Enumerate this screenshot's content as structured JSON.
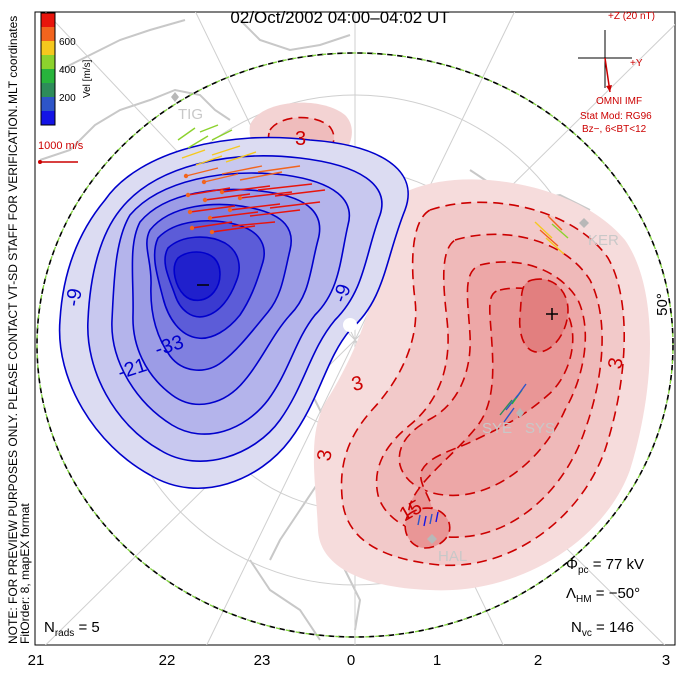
{
  "title": "02/Oct/2002 04:00–04:02 UT",
  "colorbar": {
    "ticks": [
      "600",
      "400",
      "200"
    ],
    "unit_label": "Vel [m/s]",
    "colors_top_to_bottom": [
      "#e8140c",
      "#f2641e",
      "#f5c81e",
      "#8cd22d",
      "#28b43c",
      "#2d8c5a",
      "#2d55c8",
      "#1414e6"
    ]
  },
  "coords_label": "MLT coordinates",
  "scale_vector_label": "1000 m/s",
  "imf": {
    "plus_z_label": "+Z (20 nT)",
    "plus_y_label": "+Y",
    "source_label": "OMNI IMF",
    "stat_mod": "Stat Mod: RG96",
    "condition": "Bz−, 6<BT<12"
  },
  "contour_labels": {
    "neg": [
      "-9",
      "-33",
      "-21",
      "-9"
    ],
    "pos": [
      "3",
      "3",
      "3",
      "3",
      "15"
    ],
    "min_marker": "−",
    "max_marker": "+"
  },
  "latitude_label": "50°",
  "radars": [
    "TIG",
    "KER",
    "SYE",
    "SYS",
    "HAL"
  ],
  "preview_note": "NOTE: FOR PREVIEW PURPOSES ONLY. PLEASE CONTACT VT-SD STAFF FOR VERIFICATION.",
  "fit_order": "FitOrder: 8, mapEX format",
  "stats": {
    "nrads_sym": "N",
    "nrads_sub": "rads",
    "nrads_val": "= 5",
    "phi_sym": "Φ",
    "phi_sub": "pc",
    "phi_val": "= 77 kV",
    "lambda_sym": "Λ",
    "lambda_sub": "HM",
    "lambda_val": "= −50°",
    "nvc_sym": "N",
    "nvc_sub": "vc",
    "nvc_val": "= 146"
  },
  "mlt_ticks": [
    "21",
    "22",
    "23",
    "0",
    "1",
    "2",
    "3"
  ]
}
